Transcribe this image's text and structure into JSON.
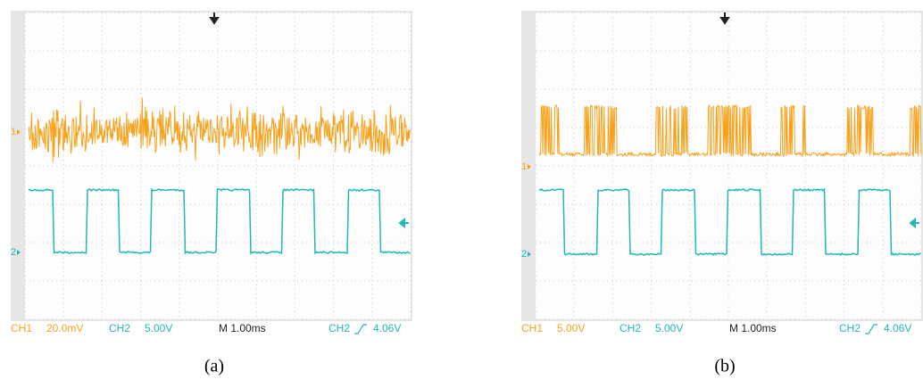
{
  "panels": [
    {
      "channel_markers": [
        "1",
        "2"
      ],
      "status": {
        "ch1_label": "CH1",
        "ch1_scale": "20.0mV",
        "ch2_label": "CH2",
        "ch2_scale": "5.00V",
        "timebase": "M 1.00ms",
        "trigger_source": "CH2",
        "trigger_level": "4.06V"
      },
      "caption": "(a)"
    },
    {
      "channel_markers": [
        "1",
        "2"
      ],
      "status": {
        "ch1_label": "CH1",
        "ch1_scale": "5.00V",
        "ch2_label": "CH2",
        "ch2_scale": "5.00V",
        "timebase": "M 1.00ms",
        "trigger_source": "CH2",
        "trigger_level": "4.06V"
      },
      "caption": "(b)"
    }
  ]
}
